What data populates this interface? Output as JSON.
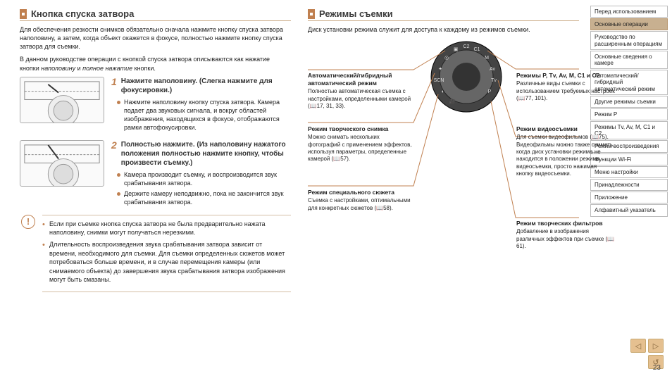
{
  "colors": {
    "accent": "#c08050",
    "rule": "#c9a884",
    "navActive": "#c8b090"
  },
  "page_number": "23",
  "left": {
    "heading": "Кнопка спуска затвора",
    "intro_p1": "Для обеспечения резкости снимков обязательно сначала нажмите кнопку спуска затвора наполовину, а затем, когда объект окажется в фокусе, полностью нажмите кнопку спуска затвора для съемки.",
    "intro_p2": "В данном руководстве операции с кнопкой спуска затвора описываются как нажатие кнопки наполовину и полное нажатие кнопки.",
    "step1": {
      "num": "1",
      "title": "Нажмите наполовину. (Слегка нажмите для фокусировки.)",
      "bullets": [
        "Нажмите наполовину кнопку спуска затвора. Камера подает два звуковых сигнала, и вокруг областей изображения, находящихся в фокусе, отображаются рамки автофокусировки."
      ]
    },
    "step2": {
      "num": "2",
      "title": "Полностью нажмите. (Из наполовину нажатого положения полностью нажмите кнопку, чтобы произвести съемку.)",
      "bullets": [
        "Камера производит съемку, и воспроизводится звук срабатывания затвора.",
        "Держите камеру неподвижно, пока не закончится звук срабатывания затвора."
      ]
    },
    "warnings": [
      "Если при съемке кнопка спуска затвора не была предварительно нажата наполовину, снимки могут получаться нерезкими.",
      "Длительность воспроизведения звука срабатывания затвора зависит от времени, необходимого для съемки. Для съемки определенных сюжетов может потребоваться больше времени, и в случае перемещения камеры (или снимаемого объекта) до завершения звука срабатывания затвора изображения могут быть смазаны."
    ]
  },
  "right": {
    "heading": "Режимы съемки",
    "intro": "Диск установки режима служит для доступа к каждому из режимов съемки.",
    "callouts": {
      "auto": {
        "title": "Автоматический/гибридный автоматический режим",
        "body": "Полностью автоматическая съемка с настройками, определенными камерой (📖17, 31, 33)."
      },
      "creative": {
        "title": "Режим творческого снимка",
        "body": "Можно снимать нескольких фотографий с применением эффектов, используя параметры, определенные камерой (📖57)."
      },
      "scn": {
        "title": "Режим специального сюжета",
        "body": "Съемка с настройками, оптимальными для конкретных сюжетов (📖58)."
      },
      "ptv": {
        "title": "Режимы P, Tv, Av, M, C1 и C2",
        "body": "Различные виды съемки с использованием требуемых настроек (📖77, 101)."
      },
      "movie": {
        "title": "Режим видеосъемки",
        "body": "Для съемки видеофильмов (📖75). Видеофильмы можно также снимать, когда диск установки режима не находится в положении режима видеосъемки, просто нажимая кнопку видеосъемки."
      },
      "filters": {
        "title": "Режим творческих фильтров",
        "body": "Добавление в изображения различных эффектов при съемке (📖61)."
      }
    }
  },
  "sidebar": [
    {
      "label": "Перед использованием",
      "active": false
    },
    {
      "label": "Основные операции",
      "active": true
    },
    {
      "label": "Руководство по расширенным операциям",
      "active": false
    },
    {
      "label": "Основные сведения о камере",
      "active": false
    },
    {
      "label": "Автоматический/гибридный автоматический режим",
      "active": false
    },
    {
      "label": "Другие режимы съемки",
      "active": false
    },
    {
      "label": "Режим P",
      "active": false
    },
    {
      "label": "Режимы Tv, Av, M, C1 и C2",
      "active": false
    },
    {
      "label": "Режим воспроизведения",
      "active": false
    },
    {
      "label": "Функции Wi-Fi",
      "active": false
    },
    {
      "label": "Меню настройки",
      "active": false
    },
    {
      "label": "Принадлежности",
      "active": false
    },
    {
      "label": "Приложение",
      "active": false
    },
    {
      "label": "Алфавитный указатель",
      "active": false
    }
  ],
  "nav_buttons": {
    "prev": "◁",
    "next": "▷",
    "back": "↺"
  }
}
